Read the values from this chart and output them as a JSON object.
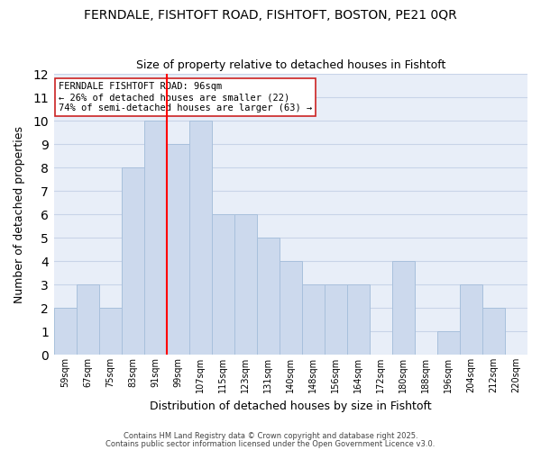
{
  "title": "FERNDALE, FISHTOFT ROAD, FISHTOFT, BOSTON, PE21 0QR",
  "subtitle": "Size of property relative to detached houses in Fishtoft",
  "xlabel": "Distribution of detached houses by size in Fishtoft",
  "ylabel": "Number of detached properties",
  "bar_labels": [
    "59sqm",
    "67sqm",
    "75sqm",
    "83sqm",
    "91sqm",
    "99sqm",
    "107sqm",
    "115sqm",
    "123sqm",
    "131sqm",
    "140sqm",
    "148sqm",
    "156sqm",
    "164sqm",
    "172sqm",
    "180sqm",
    "188sqm",
    "196sqm",
    "204sqm",
    "212sqm",
    "220sqm"
  ],
  "bar_values": [
    2,
    3,
    2,
    8,
    10,
    9,
    10,
    6,
    6,
    5,
    4,
    3,
    3,
    3,
    0,
    4,
    0,
    1,
    3,
    2,
    0
  ],
  "bar_color": "#ccd9ed",
  "bar_edge_color": "#a8c0dc",
  "grid_color": "#c8d4e8",
  "bg_color": "#e8eef8",
  "vline_color": "red",
  "annotation_title": "FERNDALE FISHTOFT ROAD: 96sqm",
  "annotation_line1": "← 26% of detached houses are smaller (22)",
  "annotation_line2": "74% of semi-detached houses are larger (63) →",
  "ylim": [
    0,
    12
  ],
  "yticks": [
    0,
    1,
    2,
    3,
    4,
    5,
    6,
    7,
    8,
    9,
    10,
    11,
    12
  ],
  "footer1": "Contains HM Land Registry data © Crown copyright and database right 2025.",
  "footer2": "Contains public sector information licensed under the Open Government Licence v3.0."
}
